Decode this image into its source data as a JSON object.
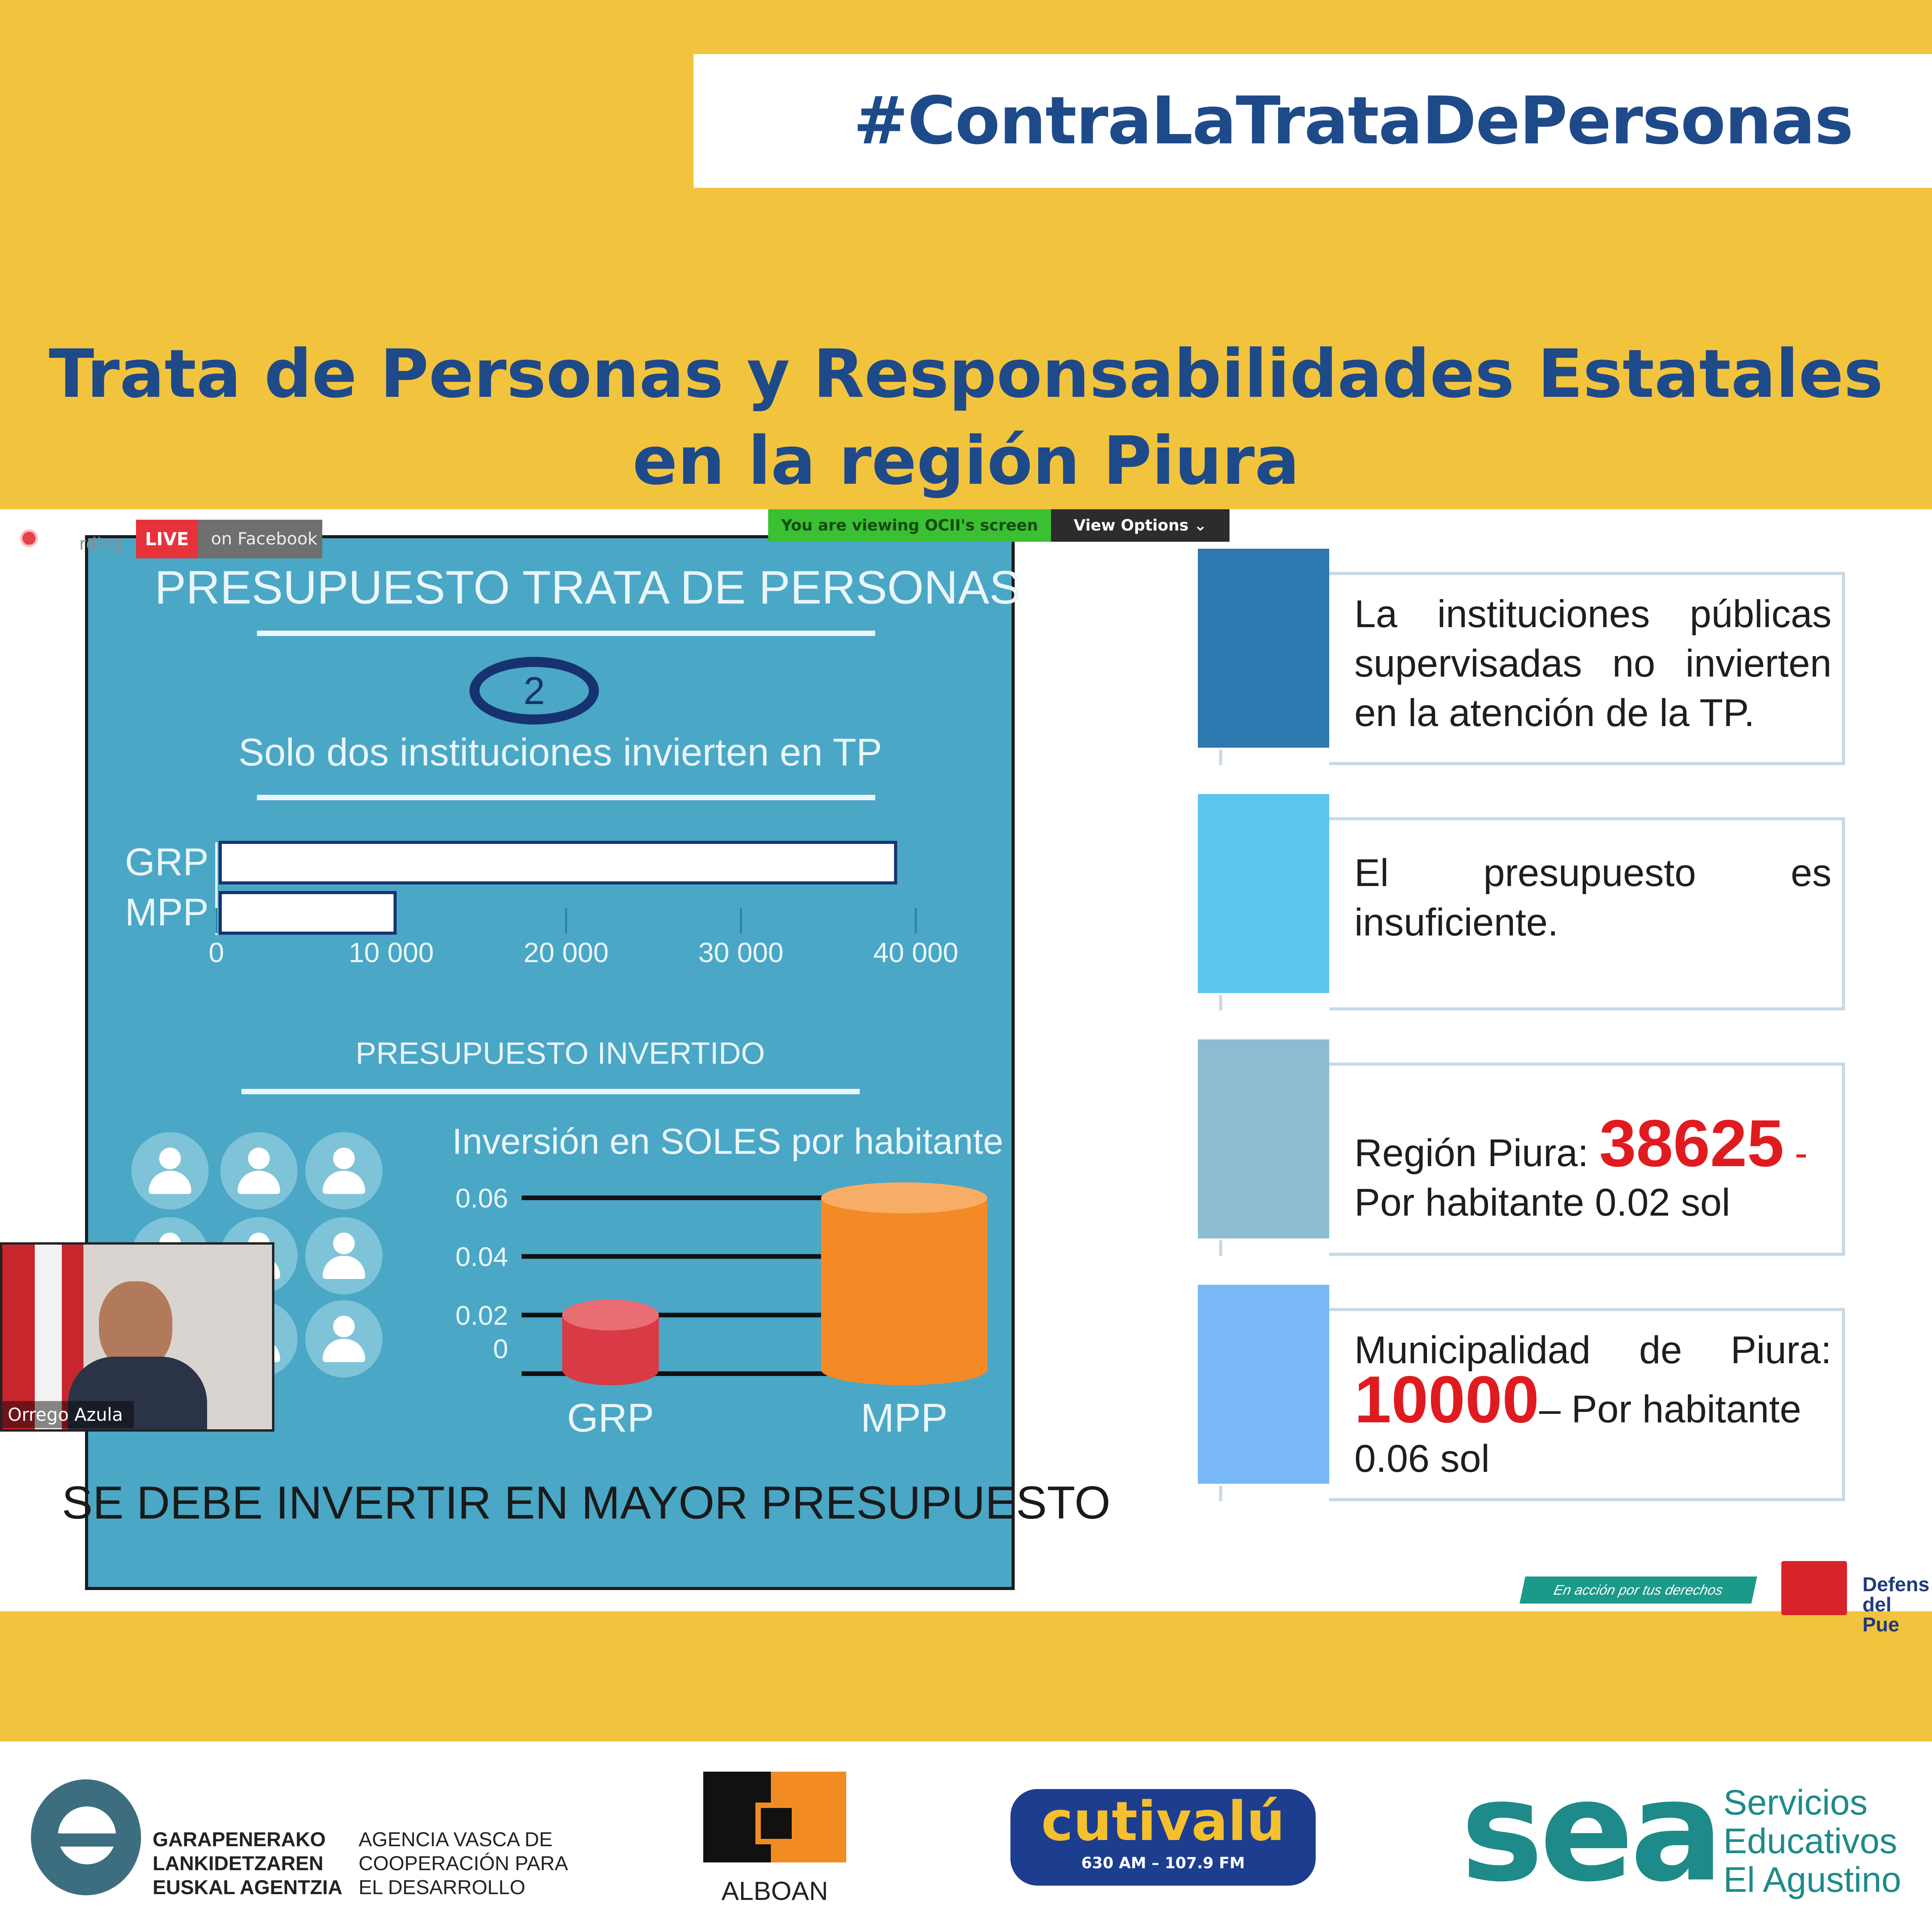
{
  "header": {
    "hashtag": "#ContraLaTrataDePersonas",
    "title_line1": "Trata de Personas y Responsabilidades Estatales",
    "title_line2": "en la región Piura"
  },
  "zoom": {
    "rec_label": "rding",
    "live": "LIVE",
    "on_facebook": "on Facebook",
    "viewing": "You are viewing OCII's screen",
    "view_options": "View Options ⌄",
    "speaker_name": "Orrego Azula"
  },
  "slide": {
    "title": "PRESUPUESTO TRATA DE PERSONAS",
    "badge": "2",
    "subtitle": "Solo dos instituciones invierten en TP",
    "section2_title": "PRESUPUESTO INVERTIDO",
    "chart2_title": "Inversión en SOLES por habitante",
    "footer_text": "SE DEBE INVERTIR EN MAYOR PRESUPUESTO"
  },
  "chart_data": [
    {
      "type": "bar",
      "orientation": "horizontal",
      "categories": [
        "GRP",
        "MPP"
      ],
      "values": [
        38625,
        10000
      ],
      "xticks": [
        "0",
        "10 000",
        "20 000",
        "30 000",
        "40 000"
      ],
      "xlim": [
        0,
        40000
      ],
      "colors": [
        "#ffffff"
      ]
    },
    {
      "type": "bar",
      "title": "Inversión en SOLES por habitante",
      "categories": [
        "GRP",
        "MPP"
      ],
      "values": [
        0.02,
        0.06
      ],
      "yticks": [
        "0",
        "0.02",
        "0.04",
        "0.06"
      ],
      "ylim": [
        0,
        0.06
      ],
      "colors": [
        "#d93a43",
        "#f48a26"
      ]
    }
  ],
  "cards": [
    {
      "color": "#2e78b0",
      "text": "La instituciones públicas supervisadas no invierten en la atención de la TP."
    },
    {
      "color": "#5bc4ef",
      "text": "El presupuesto es insuficiente."
    },
    {
      "color": "#8dbcd2",
      "prefix": "Región Piura: ",
      "highlight": "38625",
      "suffix": " -",
      "line2": "Por habitante 0.02 sol"
    },
    {
      "color": "#79b8f7",
      "prefix": "Municipalidad de Piura:",
      "highlight": "10000",
      "suffix": "– Por habitante",
      "line2": "0.06 sol"
    }
  ],
  "defensoria": {
    "tagline": "En acción por tus derechos",
    "name": "Defens del Pue"
  },
  "footer": {
    "logo1_line1": "GARAPENERAKO",
    "logo1_line2": "LANKIDETZAREN",
    "logo1_line3": "EUSKAL AGENTZIA",
    "logo1_es1": "AGENCIA VASCA DE",
    "logo1_es2": "COOPERACIÓN PARA",
    "logo1_es3": "EL DESARROLLO",
    "logo2": "ALBOAN",
    "logo3": "cutivalú",
    "logo3_sub": "630 AM – 107.9 FM",
    "logo4_mark": "sea",
    "logo4_line1": "Servicios",
    "logo4_line2": "Educativos",
    "logo4_line3": "El Agustino"
  }
}
